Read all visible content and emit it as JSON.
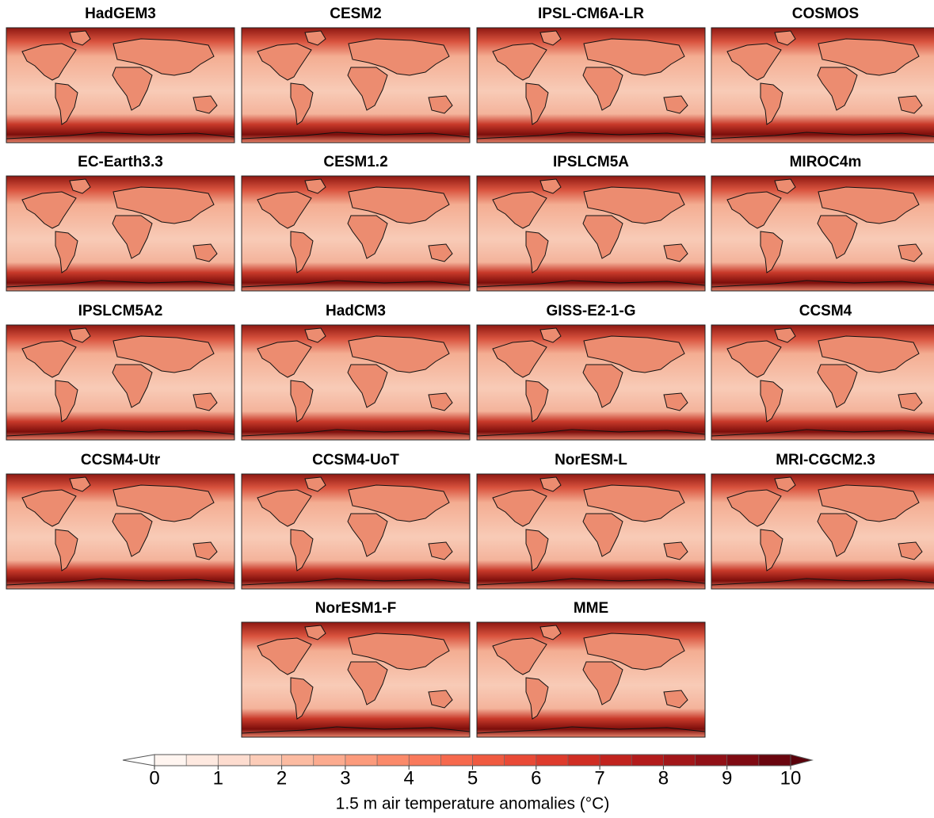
{
  "panels": [
    {
      "title": "HadGEM3"
    },
    {
      "title": "CESM2"
    },
    {
      "title": "IPSL-CM6A-LR"
    },
    {
      "title": "COSMOS"
    },
    {
      "title": "EC-Earth3.3"
    },
    {
      "title": "CESM1.2"
    },
    {
      "title": "IPSLCM5A"
    },
    {
      "title": "MIROC4m"
    },
    {
      "title": "IPSLCM5A2"
    },
    {
      "title": "HadCM3"
    },
    {
      "title": "GISS-E2-1-G"
    },
    {
      "title": "CCSM4"
    },
    {
      "title": "CCSM4-Utr"
    },
    {
      "title": "CCSM4-UoT"
    },
    {
      "title": "NorESM-L"
    },
    {
      "title": "MRI-CGCM2.3"
    },
    {
      "title": "NorESM1-F"
    },
    {
      "title": "MME"
    }
  ],
  "colorbar": {
    "label": "1.5 m air temperature anomalies (°C)",
    "ticks": [
      0,
      1,
      2,
      3,
      4,
      5,
      6,
      7,
      8,
      9,
      10
    ],
    "colors": [
      "#fff5f0",
      "#fee9e0",
      "#fddccf",
      "#fcccb8",
      "#fcbba1",
      "#fcab8f",
      "#fc9b7c",
      "#fb8a6a",
      "#f9795b",
      "#f6694d",
      "#f05a40",
      "#e94a36",
      "#de3b2c",
      "#d02d23",
      "#c1231e",
      "#b31b1b",
      "#a21619",
      "#911016",
      "#7f0a12",
      "#6a050e"
    ],
    "under_color": "#ffffff",
    "over_color": "#5a020b"
  }
}
